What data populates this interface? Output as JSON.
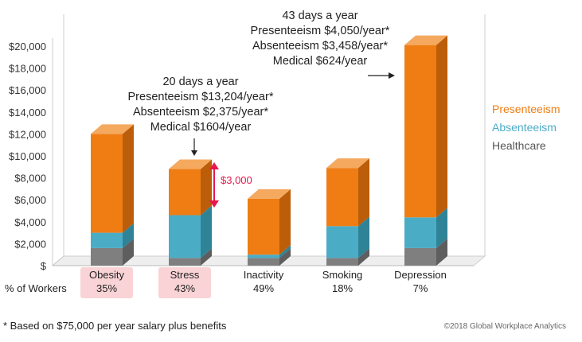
{
  "chart_data": {
    "type": "bar",
    "stacked": true,
    "categories": [
      "Obesity",
      "Stress",
      "Inactivity",
      "Smoking",
      "Depression"
    ],
    "percent_row_label": "% of Workers",
    "percent_of_workers": [
      "35%",
      "43%",
      "49%",
      "18%",
      "7%"
    ],
    "highlighted_categories": [
      "Obesity",
      "Stress"
    ],
    "series": [
      {
        "name": "Healthcare",
        "color": "#7f7f7f",
        "top_color": "#9a9a9a",
        "side_color": "#5e5e5e",
        "values": [
          1600,
          700,
          700,
          700,
          1600
        ]
      },
      {
        "name": "Absenteeism",
        "color": "#4bacc6",
        "top_color": "#7fc6d8",
        "side_color": "#2f8397",
        "values": [
          1400,
          3900,
          300,
          2900,
          2800
        ]
      },
      {
        "name": "Presenteeism",
        "color": "#ef7d14",
        "top_color": "#f4a95f",
        "side_color": "#bc5d0a",
        "values": [
          9000,
          4200,
          5100,
          5300,
          15700
        ]
      }
    ],
    "y_ticks": [
      "$",
      "$2,000",
      "$4,000",
      "$6,000",
      "$8,000",
      "$10,000",
      "$12,000",
      "$14,000",
      "$16,000",
      "$18,000",
      "$20,000"
    ],
    "ylim": [
      0,
      20000
    ],
    "legend_order": [
      "Presenteeism",
      "Absenteeism",
      "Healthcare"
    ],
    "annotations": {
      "stress": [
        "20 days a year",
        "Presenteeism $13,204/year*",
        "Absenteeism $2,375/year*",
        "Medical $1604/year"
      ],
      "depression": [
        "43 days a year",
        "Presenteeism $4,050/year*",
        "Absenteeism $3,458/year*",
        "Medical $624/year"
      ],
      "stress_range": "$3,000",
      "stress_range_color": "#e8174b",
      "highlight_color": "#f9d3d6"
    }
  },
  "footer": {
    "note": "* Based on $75,000 per year salary plus benefits",
    "copyright": "©2018  Global Workplace Analytics"
  }
}
